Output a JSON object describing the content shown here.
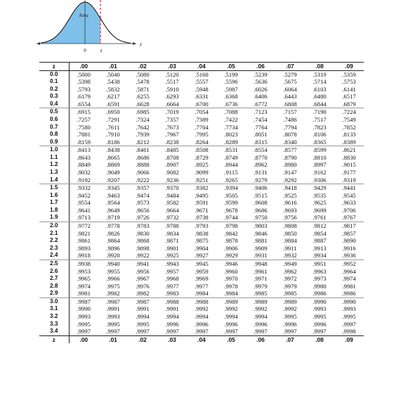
{
  "figure": {
    "area_label": "Area",
    "origin_label": "0",
    "z_label": "z",
    "axis_label": "z",
    "fill_color": "#7fc0ea",
    "marker_color": "#e0245a"
  },
  "table": {
    "header": [
      "z",
      ".00",
      ".01",
      ".02",
      ".03",
      ".04",
      ".05",
      ".06",
      ".07",
      ".08",
      ".09"
    ],
    "rows": [
      [
        "0.0",
        ".5000",
        ".5040",
        ".5080",
        ".5120",
        ".5160",
        ".5199",
        ".5239",
        ".5279",
        ".5319",
        ".5359"
      ],
      [
        "0.1",
        ".5398",
        ".5438",
        ".5478",
        ".5517",
        ".5557",
        ".5596",
        ".5636",
        ".5675",
        ".5714",
        ".5753"
      ],
      [
        "0.2",
        ".5793",
        ".5832",
        ".5871",
        ".5910",
        ".5948",
        ".5987",
        ".6026",
        ".6064",
        ".6103",
        ".6141"
      ],
      [
        "0.3",
        ".6179",
        ".6217",
        ".6255",
        ".6293",
        ".6331",
        ".6368",
        ".6406",
        ".6443",
        ".6480",
        ".6517"
      ],
      [
        "0.4",
        ".6554",
        ".6591",
        ".6628",
        ".6664",
        ".6700",
        ".6736",
        ".6772",
        ".6808",
        ".6844",
        ".6879"
      ],
      [
        "0.5",
        ".6915",
        ".6950",
        ".6985",
        ".7019",
        ".7054",
        ".7088",
        ".7123",
        ".7157",
        ".7190",
        ".7224"
      ],
      [
        "0.6",
        ".7257",
        ".7291",
        ".7324",
        ".7357",
        ".7389",
        ".7422",
        ".7454",
        ".7486",
        ".7517",
        ".7549"
      ],
      [
        "0.7",
        ".7580",
        ".7611",
        ".7642",
        ".7673",
        ".7704",
        ".7734",
        ".7764",
        ".7794",
        ".7823",
        ".7852"
      ],
      [
        "0.8",
        ".7881",
        ".7910",
        ".7939",
        ".7967",
        ".7995",
        ".8023",
        ".8051",
        ".8078",
        ".8106",
        ".8133"
      ],
      [
        "0.9",
        ".8159",
        ".8186",
        ".8212",
        ".8238",
        ".8264",
        ".8289",
        ".8315",
        ".8340",
        ".8365",
        ".8389"
      ],
      [
        "1.0",
        ".8413",
        ".8438",
        ".8461",
        ".8485",
        ".8508",
        ".8531",
        ".8554",
        ".8577",
        ".8599",
        ".8621"
      ],
      [
        "1.1",
        ".8643",
        ".8665",
        ".8686",
        ".8708",
        ".8729",
        ".8749",
        ".8770",
        ".8790",
        ".8810",
        ".8830"
      ],
      [
        "1.2",
        ".8849",
        ".8869",
        ".8888",
        ".8907",
        ".8925",
        ".8944",
        ".8962",
        ".8980",
        ".8997",
        ".9015"
      ],
      [
        "1.3",
        ".9032",
        ".9049",
        ".9066",
        ".9082",
        ".9099",
        ".9115",
        ".9131",
        ".9147",
        ".9162",
        ".9177"
      ],
      [
        "1.4",
        ".9192",
        ".9207",
        ".9222",
        ".9236",
        ".9251",
        ".9265",
        ".9279",
        ".9292",
        ".9306",
        ".9319"
      ],
      [
        "1.5",
        ".9332",
        ".9345",
        ".9357",
        ".9370",
        ".9382",
        ".9394",
        ".9406",
        ".9418",
        ".9429",
        ".9441"
      ],
      [
        "1.6",
        ".9452",
        ".9463",
        ".9474",
        ".9484",
        ".9495",
        ".9505",
        ".9515",
        ".9525",
        ".9535",
        ".9545"
      ],
      [
        "1.7",
        ".9554",
        ".9564",
        ".9573",
        ".9582",
        ".9591",
        ".9599",
        ".9608",
        ".9616",
        ".9625",
        ".9633"
      ],
      [
        "1.8",
        ".9641",
        ".9649",
        ".9656",
        ".9664",
        ".9671",
        ".9678",
        ".9686",
        ".9693",
        ".9699",
        ".9706"
      ],
      [
        "1.9",
        ".9713",
        ".9719",
        ".9726",
        ".9732",
        ".9738",
        ".9744",
        ".9750",
        ".9756",
        ".9761",
        ".9767"
      ],
      [
        "2.0",
        ".9772",
        ".9778",
        ".9783",
        ".9788",
        ".9793",
        ".9798",
        ".9803",
        ".9808",
        ".9812",
        ".9817"
      ],
      [
        "2.1",
        ".9821",
        ".9826",
        ".9830",
        ".9834",
        ".9838",
        ".9842",
        ".9846",
        ".9850",
        ".9854",
        ".9857"
      ],
      [
        "2.2",
        ".9861",
        ".9864",
        ".9868",
        ".9871",
        ".9875",
        ".9878",
        ".9881",
        ".9884",
        ".9887",
        ".9890"
      ],
      [
        "2.3",
        ".9893",
        ".9896",
        ".9898",
        ".9901",
        ".9904",
        ".9906",
        ".9909",
        ".9911",
        ".9913",
        ".9916"
      ],
      [
        "2.4",
        ".9918",
        ".9920",
        ".9922",
        ".9925",
        ".9927",
        ".9929",
        ".9931",
        ".9932",
        ".9934",
        ".9936"
      ],
      [
        "2.5",
        ".9938",
        ".9940",
        ".9941",
        ".9943",
        ".9945",
        ".9946",
        ".9948",
        ".9949",
        ".9951",
        ".9952"
      ],
      [
        "2.6",
        ".9953",
        ".9955",
        ".9956",
        ".9957",
        ".9959",
        ".9960",
        ".9961",
        ".9962",
        ".9963",
        ".9964"
      ],
      [
        "2.7",
        ".9965",
        ".9966",
        ".9967",
        ".9968",
        ".9969",
        ".9970",
        ".9971",
        ".9972",
        ".9973",
        ".9974"
      ],
      [
        "2.8",
        ".9974",
        ".9975",
        ".9976",
        ".9977",
        ".9977",
        ".9978",
        ".9979",
        ".9979",
        ".9980",
        ".9981"
      ],
      [
        "2.9",
        ".9981",
        ".9982",
        ".9982",
        ".9983",
        ".9984",
        ".9984",
        ".9985",
        ".9985",
        ".9986",
        ".9986"
      ],
      [
        "3.0",
        ".9987",
        ".9987",
        ".9987",
        ".9988",
        ".9988",
        ".9989",
        ".9989",
        ".9989",
        ".9990",
        ".9990"
      ],
      [
        "3.1",
        ".9990",
        ".9991",
        ".9991",
        ".9991",
        ".9992",
        ".9992",
        ".9992",
        ".9992",
        ".9993",
        ".9993"
      ],
      [
        "3.2",
        ".9993",
        ".9993",
        ".9994",
        ".9994",
        ".9994",
        ".9994",
        ".9994",
        ".9995",
        ".9995",
        ".9995"
      ],
      [
        "3.3",
        ".9995",
        ".9995",
        ".9995",
        ".9996",
        ".9996",
        ".9996",
        ".9996",
        ".9996",
        ".9996",
        ".9997"
      ],
      [
        "3.4",
        ".9997",
        ".9997",
        ".9997",
        ".9997",
        ".9997",
        ".9997",
        ".9997",
        ".9997",
        ".9997",
        ".9998"
      ]
    ],
    "footer": [
      "z",
      ".00",
      ".01",
      ".02",
      ".03",
      ".04",
      ".05",
      ".06",
      ".07",
      ".08",
      ".09"
    ]
  }
}
